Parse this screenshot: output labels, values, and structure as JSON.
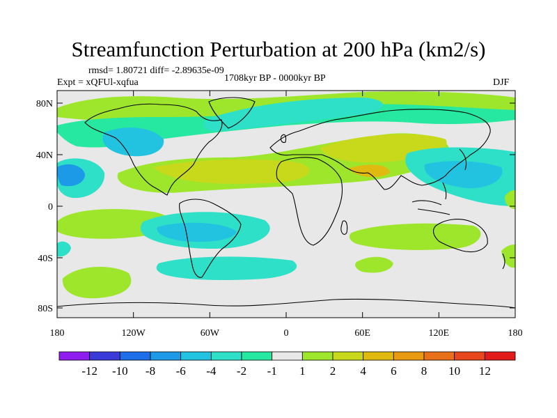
{
  "title": "Streamfunction Perturbation at 200 hPa (km2/s)",
  "stats": "rmsd= 1.80721 diff= -2.89635e-09",
  "experiment": "Expt = xQFUl-xqfua",
  "period": "1708kyr BP - 0000kyr BP",
  "season": "DJF",
  "lat_ticks": [
    "80N",
    "40N",
    "0",
    "40S",
    "80S"
  ],
  "lon_ticks": [
    "180",
    "120W",
    "60W",
    "0",
    "60E",
    "120E",
    "180"
  ],
  "colorbar": {
    "labels": [
      "-12",
      "-10",
      "-8",
      "-6",
      "-4",
      "-2",
      "-1",
      "1",
      "2",
      "4",
      "6",
      "8",
      "10",
      "12"
    ],
    "colors": [
      "#8f1df0",
      "#3a3ad8",
      "#1d6ee8",
      "#1c9ae8",
      "#22c3e0",
      "#2fe0c8",
      "#27e8a0",
      "#e8e8e8",
      "#9ee62b",
      "#c8d91c",
      "#e0ba10",
      "#e89a10",
      "#e8701a",
      "#e8461c",
      "#e31a1a"
    ]
  }
}
